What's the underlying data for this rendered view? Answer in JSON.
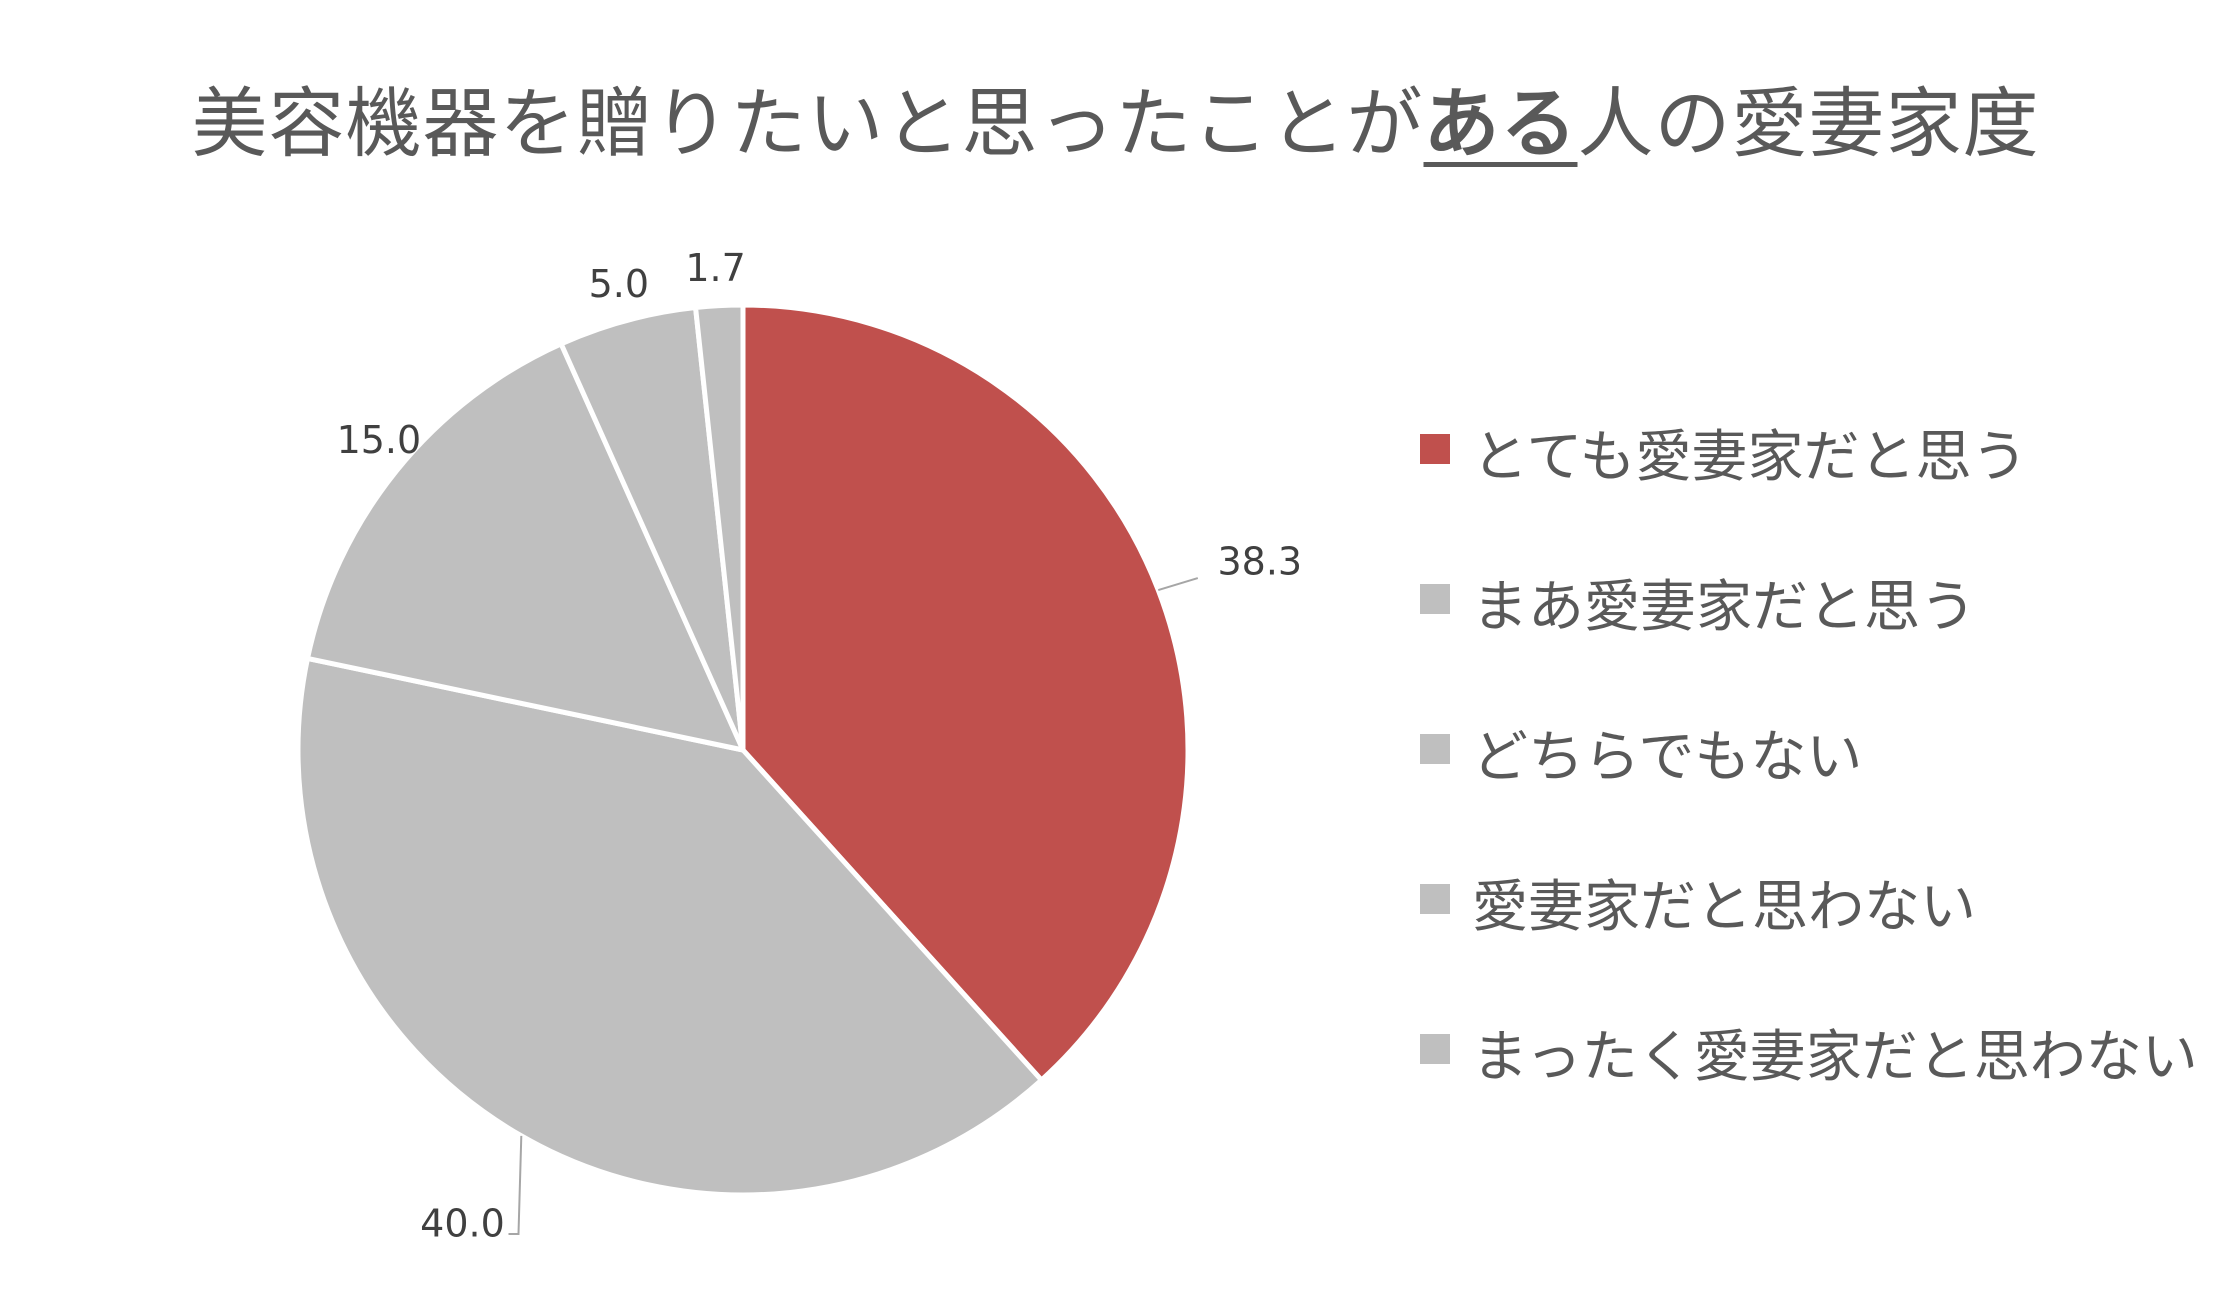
{
  "title": {
    "before": "美容機器を贈りたいと思ったことが",
    "emphasis": "ある",
    "after": "人の愛妻家度"
  },
  "chart_data": {
    "type": "pie",
    "title": "美容機器を贈りたいと思ったことがある人の愛妻家度",
    "categories": [
      "とても愛妻家だと思う",
      "まあ愛妻家だと思う",
      "どちらでもない",
      "愛妻家だと思わない",
      "まったく愛妻家だと思わない"
    ],
    "values": [
      38.3,
      40.0,
      15.0,
      5.0,
      1.7
    ],
    "value_labels": [
      "38.3",
      "40.0",
      "15.0",
      "5.0",
      "1.7"
    ],
    "colors": [
      "#c0504d",
      "#bfbfbf",
      "#bfbfbf",
      "#bfbfbf",
      "#bfbfbf"
    ],
    "start": "12 o'clock, clockwise",
    "legend_position": "right"
  }
}
